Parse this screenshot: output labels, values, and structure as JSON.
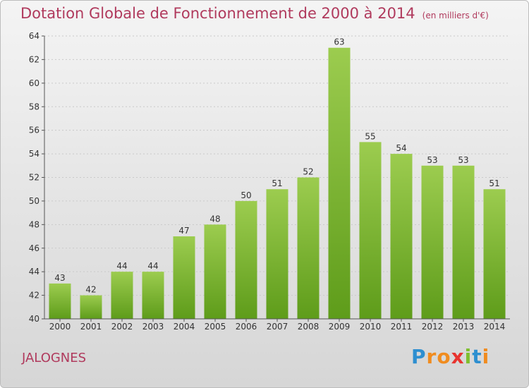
{
  "header": {
    "title": "Dotation Globale de Fonctionnement de 2000 à 2014",
    "subtitle": "(en milliers d'€)"
  },
  "footer": {
    "commune": "JALOGNES",
    "logo": [
      "P",
      "r",
      "o",
      "x",
      "i",
      "t",
      "i"
    ],
    "logo_colors": [
      "#2e8fd0",
      "#f08c1f",
      "#f08c1f",
      "#e8342f",
      "#7fbf2e",
      "#2e8fd0",
      "#f08c1f"
    ]
  },
  "chart_data": {
    "type": "bar",
    "categories": [
      "2000",
      "2001",
      "2002",
      "2003",
      "2004",
      "2005",
      "2006",
      "2007",
      "2008",
      "2009",
      "2010",
      "2011",
      "2012",
      "2013",
      "2014"
    ],
    "values": [
      43,
      42,
      44,
      44,
      47,
      48,
      50,
      51,
      52,
      63,
      55,
      54,
      53,
      53,
      51
    ],
    "data_labels": [
      "43",
      "42",
      "44",
      "44",
      "47",
      "48",
      "50",
      "51",
      "52",
      "63",
      "55",
      "54",
      "53",
      "53",
      "51"
    ],
    "ylim": [
      40,
      64
    ],
    "yticks": [
      40,
      42,
      44,
      46,
      48,
      50,
      52,
      54,
      56,
      58,
      60,
      62,
      64
    ],
    "grid": true,
    "bar_color_top": "#9ccc4f",
    "bar_color_bottom": "#5e9c1a"
  }
}
